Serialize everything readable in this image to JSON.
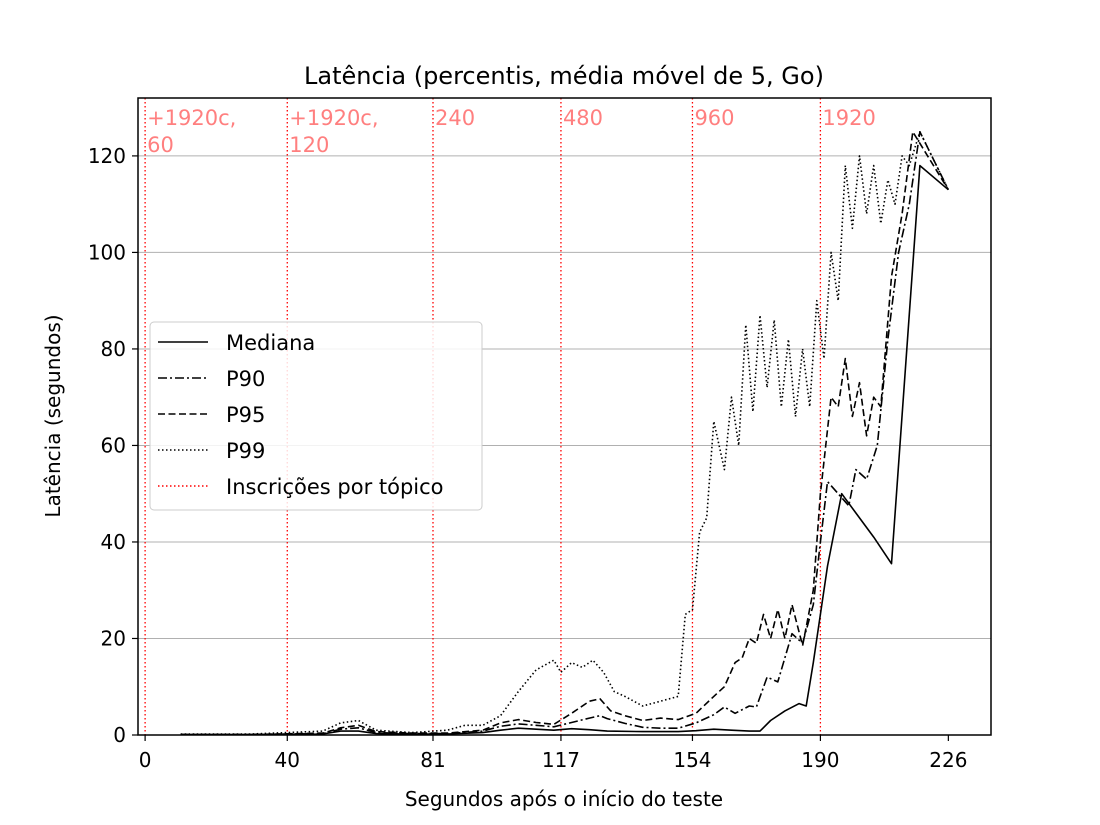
{
  "chart_data": {
    "type": "line",
    "title": "Latência (percentis, média móvel de 5, Go)",
    "xlabel": "Segundos após o início do teste",
    "ylabel": "Latência (segundos)",
    "xlim": [
      -2,
      238
    ],
    "ylim": [
      0,
      132
    ],
    "x_ticks": [
      0,
      40,
      81,
      117,
      154,
      190,
      226
    ],
    "y_ticks": [
      0,
      20,
      40,
      60,
      80,
      100,
      120
    ],
    "grid": "horizontal",
    "legend_position": "center-left",
    "vlines": {
      "name": "Inscrições por tópico",
      "color": "#ff0000",
      "x": [
        0,
        40,
        81,
        117,
        154,
        190
      ],
      "labels": [
        [
          "+1920c,",
          "60"
        ],
        [
          "+1920c,",
          "120"
        ],
        [
          "240"
        ],
        [
          "480"
        ],
        [
          "960"
        ],
        [
          "1920"
        ]
      ]
    },
    "series": [
      {
        "name": "Mediana",
        "style": "solid",
        "color": "#000000",
        "points": [
          [
            10,
            0.1
          ],
          [
            30,
            0.1
          ],
          [
            50,
            0.2
          ],
          [
            55,
            0.8
          ],
          [
            60,
            0.8
          ],
          [
            65,
            0.3
          ],
          [
            75,
            0.2
          ],
          [
            85,
            0.2
          ],
          [
            95,
            0.5
          ],
          [
            100,
            1.0
          ],
          [
            105,
            1.4
          ],
          [
            110,
            1.2
          ],
          [
            115,
            1.0
          ],
          [
            120,
            1.3
          ],
          [
            125,
            1.1
          ],
          [
            130,
            0.8
          ],
          [
            140,
            0.7
          ],
          [
            150,
            0.7
          ],
          [
            155,
            0.9
          ],
          [
            160,
            1.2
          ],
          [
            165,
            1.0
          ],
          [
            170,
            0.8
          ],
          [
            173,
            0.8
          ],
          [
            176,
            3.0
          ],
          [
            180,
            5.0
          ],
          [
            184,
            6.5
          ],
          [
            186,
            6.0
          ],
          [
            188,
            15.0
          ],
          [
            192,
            35.0
          ],
          [
            196,
            50.0
          ],
          [
            200,
            46.0
          ],
          [
            205,
            41.0
          ],
          [
            210,
            35.5
          ],
          [
            218,
            118.0
          ],
          [
            226,
            113.0
          ]
        ]
      },
      {
        "name": "P90",
        "style": "dashdot",
        "color": "#000000",
        "points": [
          [
            10,
            0.1
          ],
          [
            30,
            0.1
          ],
          [
            50,
            0.3
          ],
          [
            55,
            1.2
          ],
          [
            60,
            1.5
          ],
          [
            65,
            0.5
          ],
          [
            75,
            0.3
          ],
          [
            85,
            0.3
          ],
          [
            95,
            0.8
          ],
          [
            100,
            1.8
          ],
          [
            105,
            2.3
          ],
          [
            110,
            2.0
          ],
          [
            115,
            1.7
          ],
          [
            120,
            2.6
          ],
          [
            125,
            3.5
          ],
          [
            128,
            4.0
          ],
          [
            130,
            3.4
          ],
          [
            135,
            2.4
          ],
          [
            140,
            1.6
          ],
          [
            145,
            1.4
          ],
          [
            150,
            1.4
          ],
          [
            155,
            2.5
          ],
          [
            160,
            4.2
          ],
          [
            163,
            5.8
          ],
          [
            166,
            4.5
          ],
          [
            170,
            6.0
          ],
          [
            172,
            5.8
          ],
          [
            175,
            12.0
          ],
          [
            178,
            11.0
          ],
          [
            182,
            21.0
          ],
          [
            185,
            19.0
          ],
          [
            188,
            27.0
          ],
          [
            190,
            40.0
          ],
          [
            192,
            52.5
          ],
          [
            195,
            50.0
          ],
          [
            198,
            47.5
          ],
          [
            200,
            55.0
          ],
          [
            203,
            53.0
          ],
          [
            206,
            60.0
          ],
          [
            209,
            82.0
          ],
          [
            212,
            100.0
          ],
          [
            215,
            110.0
          ],
          [
            218,
            125.0
          ],
          [
            226,
            113.0
          ]
        ]
      },
      {
        "name": "P95",
        "style": "dashed",
        "color": "#000000",
        "points": [
          [
            10,
            0.1
          ],
          [
            30,
            0.1
          ],
          [
            50,
            0.4
          ],
          [
            55,
            1.5
          ],
          [
            60,
            2.0
          ],
          [
            65,
            0.7
          ],
          [
            75,
            0.4
          ],
          [
            85,
            0.4
          ],
          [
            95,
            1.0
          ],
          [
            100,
            2.5
          ],
          [
            105,
            3.2
          ],
          [
            110,
            2.6
          ],
          [
            115,
            2.2
          ],
          [
            120,
            4.5
          ],
          [
            125,
            7.0
          ],
          [
            128,
            7.5
          ],
          [
            131,
            5.0
          ],
          [
            135,
            4.0
          ],
          [
            140,
            3.0
          ],
          [
            145,
            3.5
          ],
          [
            150,
            3.2
          ],
          [
            155,
            4.5
          ],
          [
            160,
            8.0
          ],
          [
            163,
            10.0
          ],
          [
            166,
            15.0
          ],
          [
            168,
            16.0
          ],
          [
            170,
            20.0
          ],
          [
            172,
            19.0
          ],
          [
            174,
            25.0
          ],
          [
            176,
            20.0
          ],
          [
            178,
            26.0
          ],
          [
            180,
            20.0
          ],
          [
            182,
            27.0
          ],
          [
            185,
            18.5
          ],
          [
            188,
            30.0
          ],
          [
            190,
            50.0
          ],
          [
            193,
            70.0
          ],
          [
            195,
            68.0
          ],
          [
            197,
            78.0
          ],
          [
            199,
            66.0
          ],
          [
            201,
            73.0
          ],
          [
            203,
            62.0
          ],
          [
            205,
            70.0
          ],
          [
            207,
            68.0
          ],
          [
            210,
            95.0
          ],
          [
            213,
            108.0
          ],
          [
            216,
            125.0
          ],
          [
            226,
            113.0
          ]
        ]
      },
      {
        "name": "P99",
        "style": "dotted",
        "color": "#000000",
        "points": [
          [
            10,
            0.2
          ],
          [
            30,
            0.2
          ],
          [
            50,
            0.8
          ],
          [
            55,
            2.5
          ],
          [
            60,
            3.0
          ],
          [
            65,
            1.0
          ],
          [
            75,
            0.5
          ],
          [
            85,
            1.0
          ],
          [
            90,
            2.0
          ],
          [
            95,
            2.0
          ],
          [
            100,
            4.0
          ],
          [
            105,
            9.0
          ],
          [
            110,
            13.5
          ],
          [
            115,
            15.5
          ],
          [
            117,
            13.0
          ],
          [
            120,
            15.0
          ],
          [
            123,
            14.0
          ],
          [
            126,
            15.5
          ],
          [
            129,
            13.0
          ],
          [
            132,
            9.0
          ],
          [
            135,
            8.0
          ],
          [
            140,
            6.0
          ],
          [
            145,
            7.0
          ],
          [
            150,
            8.0
          ],
          [
            152,
            25.0
          ],
          [
            154,
            26.0
          ],
          [
            156,
            42.0
          ],
          [
            158,
            45.0
          ],
          [
            160,
            65.0
          ],
          [
            163,
            55.0
          ],
          [
            165,
            70.0
          ],
          [
            167,
            60.0
          ],
          [
            169,
            85.0
          ],
          [
            171,
            67.0
          ],
          [
            173,
            87.0
          ],
          [
            175,
            72.0
          ],
          [
            177,
            86.0
          ],
          [
            179,
            68.0
          ],
          [
            181,
            82.0
          ],
          [
            183,
            66.0
          ],
          [
            185,
            80.0
          ],
          [
            187,
            68.0
          ],
          [
            189,
            90.0
          ],
          [
            191,
            78.0
          ],
          [
            193,
            100.0
          ],
          [
            195,
            90.0
          ],
          [
            197,
            118.0
          ],
          [
            199,
            105.0
          ],
          [
            201,
            120.0
          ],
          [
            203,
            108.0
          ],
          [
            205,
            118.0
          ],
          [
            207,
            106.0
          ],
          [
            209,
            115.0
          ],
          [
            211,
            110.0
          ],
          [
            213,
            120.0
          ],
          [
            215,
            118.0
          ],
          [
            218,
            125.0
          ],
          [
            226,
            113.0
          ]
        ]
      }
    ]
  }
}
